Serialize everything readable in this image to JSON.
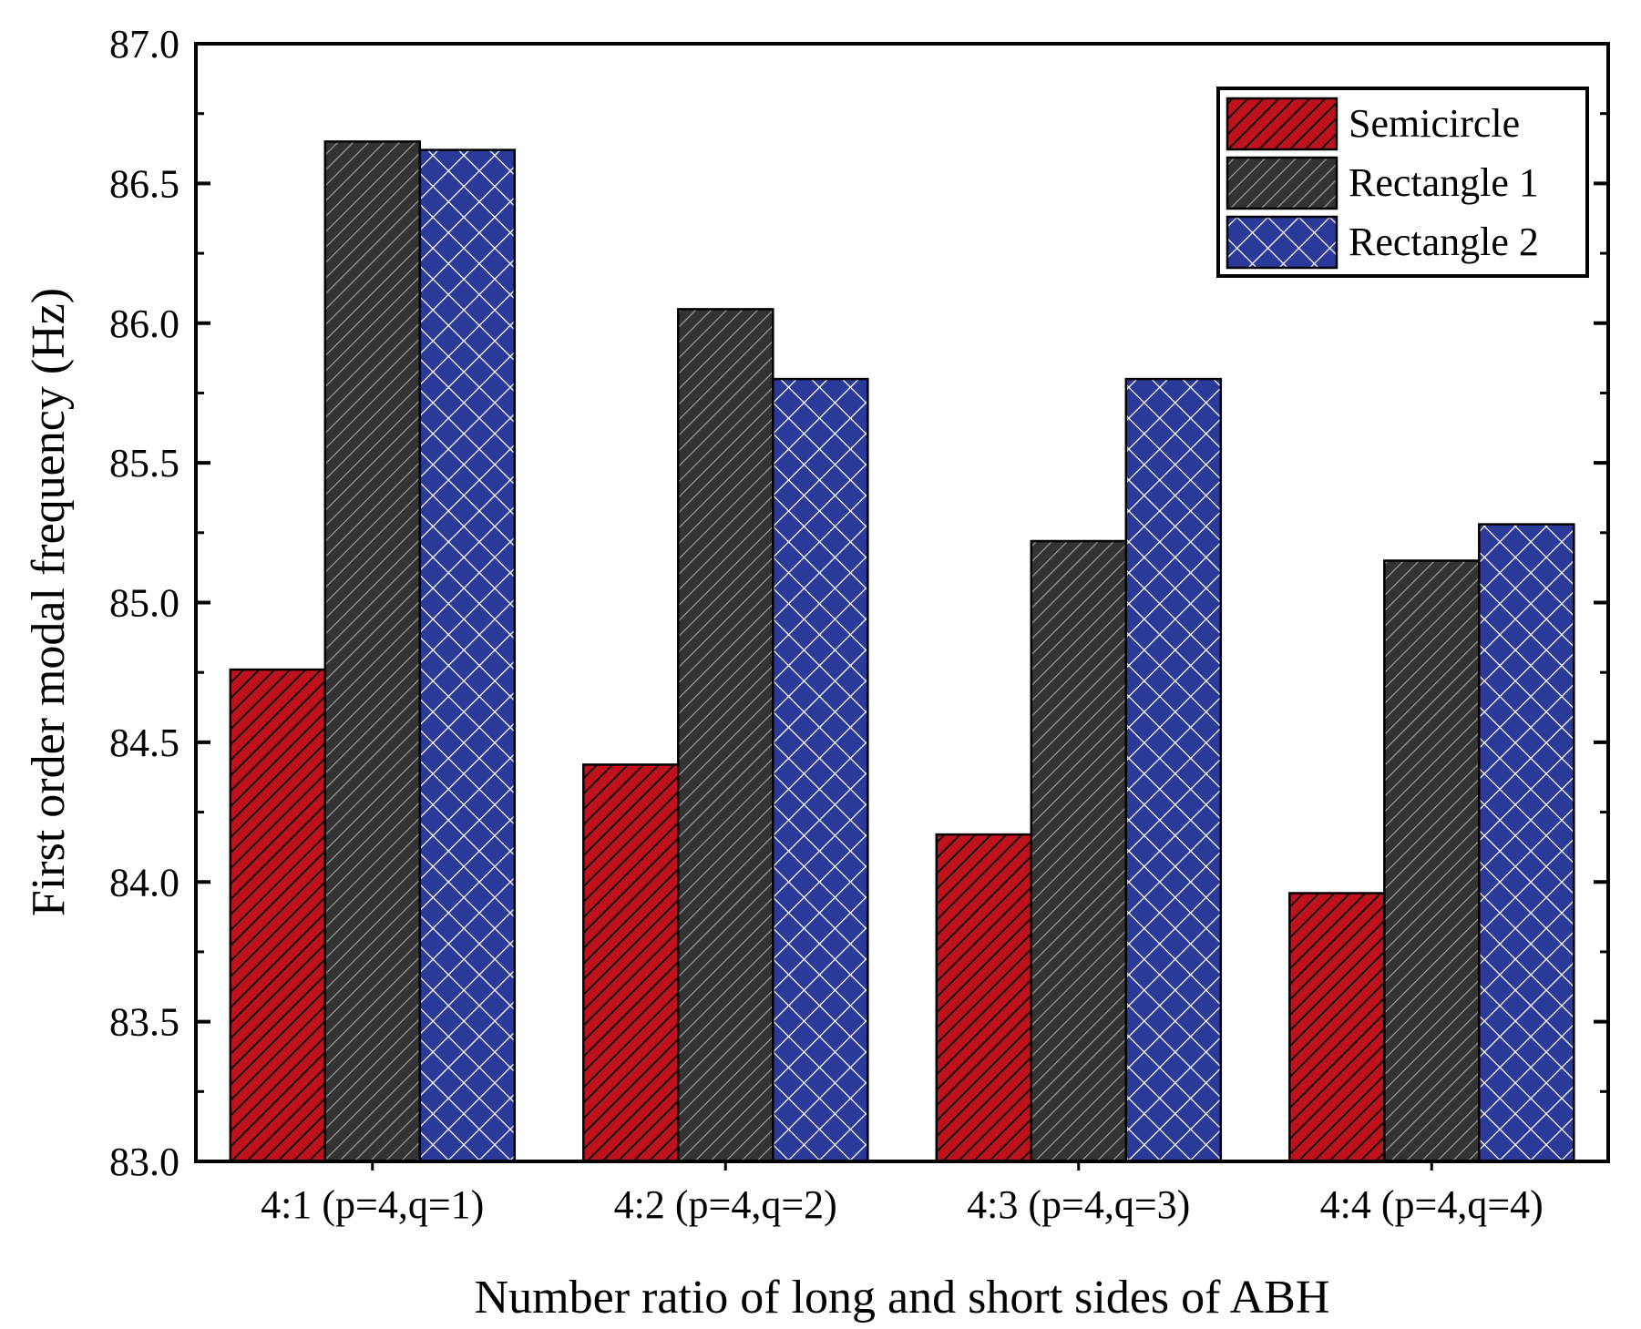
{
  "chart_data": {
    "type": "bar",
    "title": "",
    "xlabel": "Number ratio of long and short sides of ABH",
    "ylabel": "First order modal frequency (Hz)",
    "categories": [
      "4:1 (p=4,q=1)",
      "4:2 (p=4,q=2)",
      "4:3 (p=4,q=3)",
      "4:4 (p=4,q=4)"
    ],
    "ylim": [
      83.0,
      87.0
    ],
    "yticks": [
      "83.0",
      "83.5",
      "84.0",
      "84.5",
      "85.0",
      "85.5",
      "86.0",
      "86.5",
      "87.0"
    ],
    "grid": false,
    "legend_position": "top-right",
    "series": [
      {
        "name": "Semicircle",
        "color": "#c0121c",
        "pattern": "hatch",
        "values": [
          84.76,
          84.42,
          84.17,
          83.96
        ]
      },
      {
        "name": "Rectangle 1",
        "color": "#333333",
        "pattern": "hatch",
        "values": [
          86.65,
          86.05,
          85.22,
          85.15
        ]
      },
      {
        "name": "Rectangle 2",
        "color": "#2b3a99",
        "pattern": "crosshatch",
        "values": [
          86.62,
          85.8,
          85.8,
          85.28
        ]
      }
    ]
  }
}
